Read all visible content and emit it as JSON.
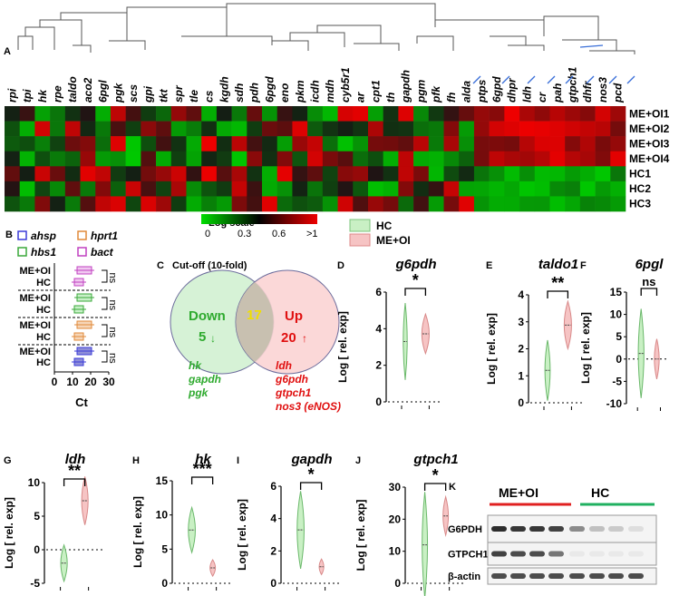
{
  "panel_a": {
    "label": "A",
    "genes": [
      "rpi",
      "tpi",
      "hk",
      "rpe",
      "taldo",
      "aco2",
      "6pgl",
      "pgk",
      "scs",
      "gpi",
      "tkt",
      "spr",
      "tle",
      "cs",
      "kgdh",
      "sdh",
      "pdh",
      "6pgd",
      "eno",
      "pkm",
      "icdh",
      "mdh",
      "cyb5r1",
      "ar",
      "cpt1",
      "th",
      "gapdh",
      "pgm",
      "pfk",
      "fh",
      "alda",
      "ptps",
      "6gpd",
      "dhpr",
      "ldh",
      "cr",
      "pah",
      "gtpch1",
      "dhfr",
      "nos3",
      "pcd"
    ],
    "rows": [
      "ME+OI1",
      "ME+OI2",
      "ME+OI3",
      "ME+OI4",
      "HC1",
      "HC2",
      "HC3"
    ],
    "scale_title": "Log scale",
    "scale_ticks": [
      "0",
      "0.3",
      "0.6",
      ">1"
    ],
    "legend": [
      {
        "label": "HC",
        "color": "#c9f0c4"
      },
      {
        "label": "ME+OI",
        "color": "#f6c4c4"
      }
    ]
  },
  "panel_b": {
    "label": "B",
    "legend": [
      {
        "name": "ahsp",
        "color": "#3b3bd8"
      },
      {
        "name": "hprt1",
        "color": "#e08a3a"
      },
      {
        "name": "hbs1",
        "color": "#3aa83a"
      },
      {
        "name": "bact",
        "color": "#c040c0"
      }
    ],
    "rows": [
      "ME+OI",
      "HC",
      "ME+OI",
      "HC",
      "ME+OI",
      "HC",
      "ME+OI",
      "HC"
    ],
    "sig": [
      "ns",
      "ns",
      "ns",
      "ns"
    ],
    "xticks": [
      "0",
      "10",
      "20",
      "30"
    ],
    "xlabel": "Ct"
  },
  "panel_c": {
    "label": "C",
    "title": "Cut-off (10-fold)",
    "down_label": "Down",
    "down_count": "5",
    "overlap": "17",
    "up_label": "Up",
    "up_count": "20",
    "down_genes": [
      "hk",
      "gapdh",
      "pgk"
    ],
    "up_genes": [
      "ldh",
      "g6pdh",
      "gtpch1",
      "nos3 (eNOS)"
    ]
  },
  "violins": [
    {
      "label": "D",
      "gene": "g6pdh",
      "sig": "*",
      "yticks": [
        "0",
        "2",
        "4",
        "6"
      ],
      "ylabel": "Log [ rel. exp]"
    },
    {
      "label": "E",
      "gene": "taldo1",
      "sig": "**",
      "yticks": [
        "0",
        "1",
        "2",
        "3",
        "4"
      ],
      "ylabel": "Log [ rel. exp]"
    },
    {
      "label": "F",
      "gene": "6pgl",
      "sig": "ns",
      "yticks": [
        "-10",
        "-5",
        "0",
        "5",
        "10",
        "15"
      ],
      "ylabel": "Log [ rel. exp]"
    },
    {
      "label": "G",
      "gene": "ldh",
      "sig": "**",
      "yticks": [
        "-5",
        "0",
        "5",
        "10"
      ],
      "ylabel": "Log [ rel. exp]"
    },
    {
      "label": "H",
      "gene": "hk",
      "sig": "***",
      "yticks": [
        "0",
        "5",
        "10",
        "15"
      ],
      "ylabel": "Log [ rel. exp]"
    },
    {
      "label": "I",
      "gene": "gapdh",
      "sig": "*",
      "yticks": [
        "0",
        "2",
        "4",
        "6"
      ],
      "ylabel": "Log [ rel. exp]"
    },
    {
      "label": "J",
      "gene": "gtpch1",
      "sig": "*",
      "yticks": [
        "0",
        "10",
        "20",
        "30"
      ],
      "ylabel": "Log [ rel. exp]"
    }
  ],
  "panel_k": {
    "label": "K",
    "group1": "ME+OI",
    "group2": "HC",
    "rows": [
      "G6PDH",
      "GTPCH1",
      "β-actin"
    ]
  },
  "colors": {
    "green": "#00c800",
    "red": "#e00000",
    "hc_fill": "#c9f0c4",
    "me_fill": "#f6c4c4"
  }
}
